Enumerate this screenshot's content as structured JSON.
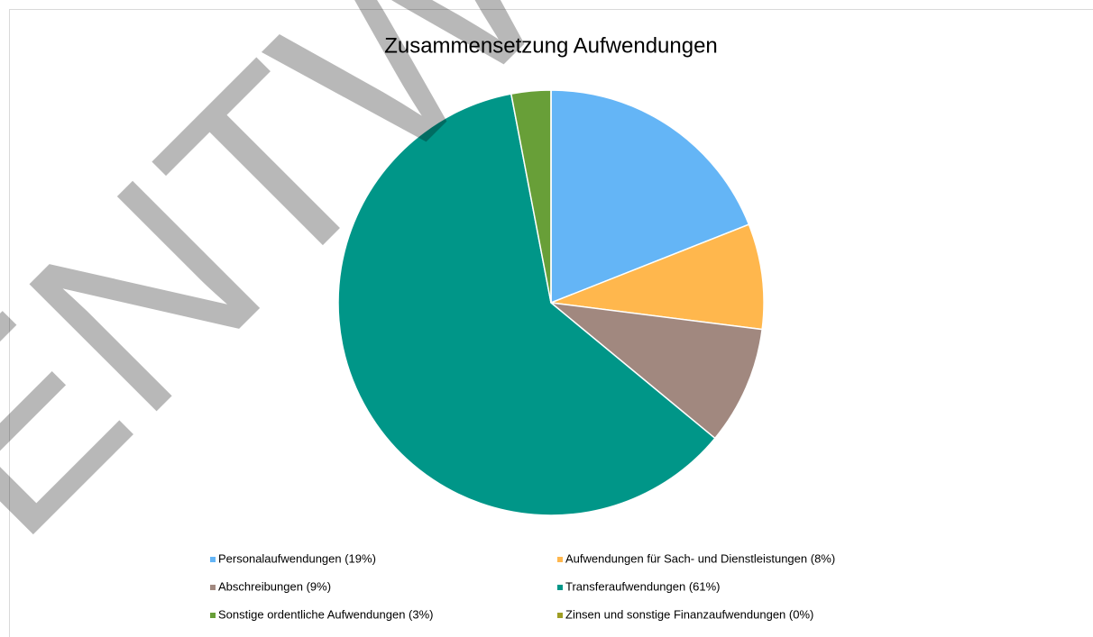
{
  "chart_data": {
    "type": "pie",
    "title": "Zusammensetzung  Aufwendungen",
    "categories": [
      "Personalaufwendungen (19%)",
      "Aufwendungen für Sach- und Dienstleistungen (8%)",
      "Abschreibungen (9%)",
      "Transferaufwendungen (61%)",
      "Sonstige ordentliche Aufwendungen (3%)",
      "Zinsen und sonstige Finanzaufwendungen (0%)"
    ],
    "values": [
      19,
      8,
      9,
      61,
      3,
      0
    ],
    "colors": [
      "#64b5f6",
      "#ffb74d",
      "#a1887f",
      "#009688",
      "#689f38",
      "#9e9d24"
    ],
    "watermark": "ENTW"
  }
}
